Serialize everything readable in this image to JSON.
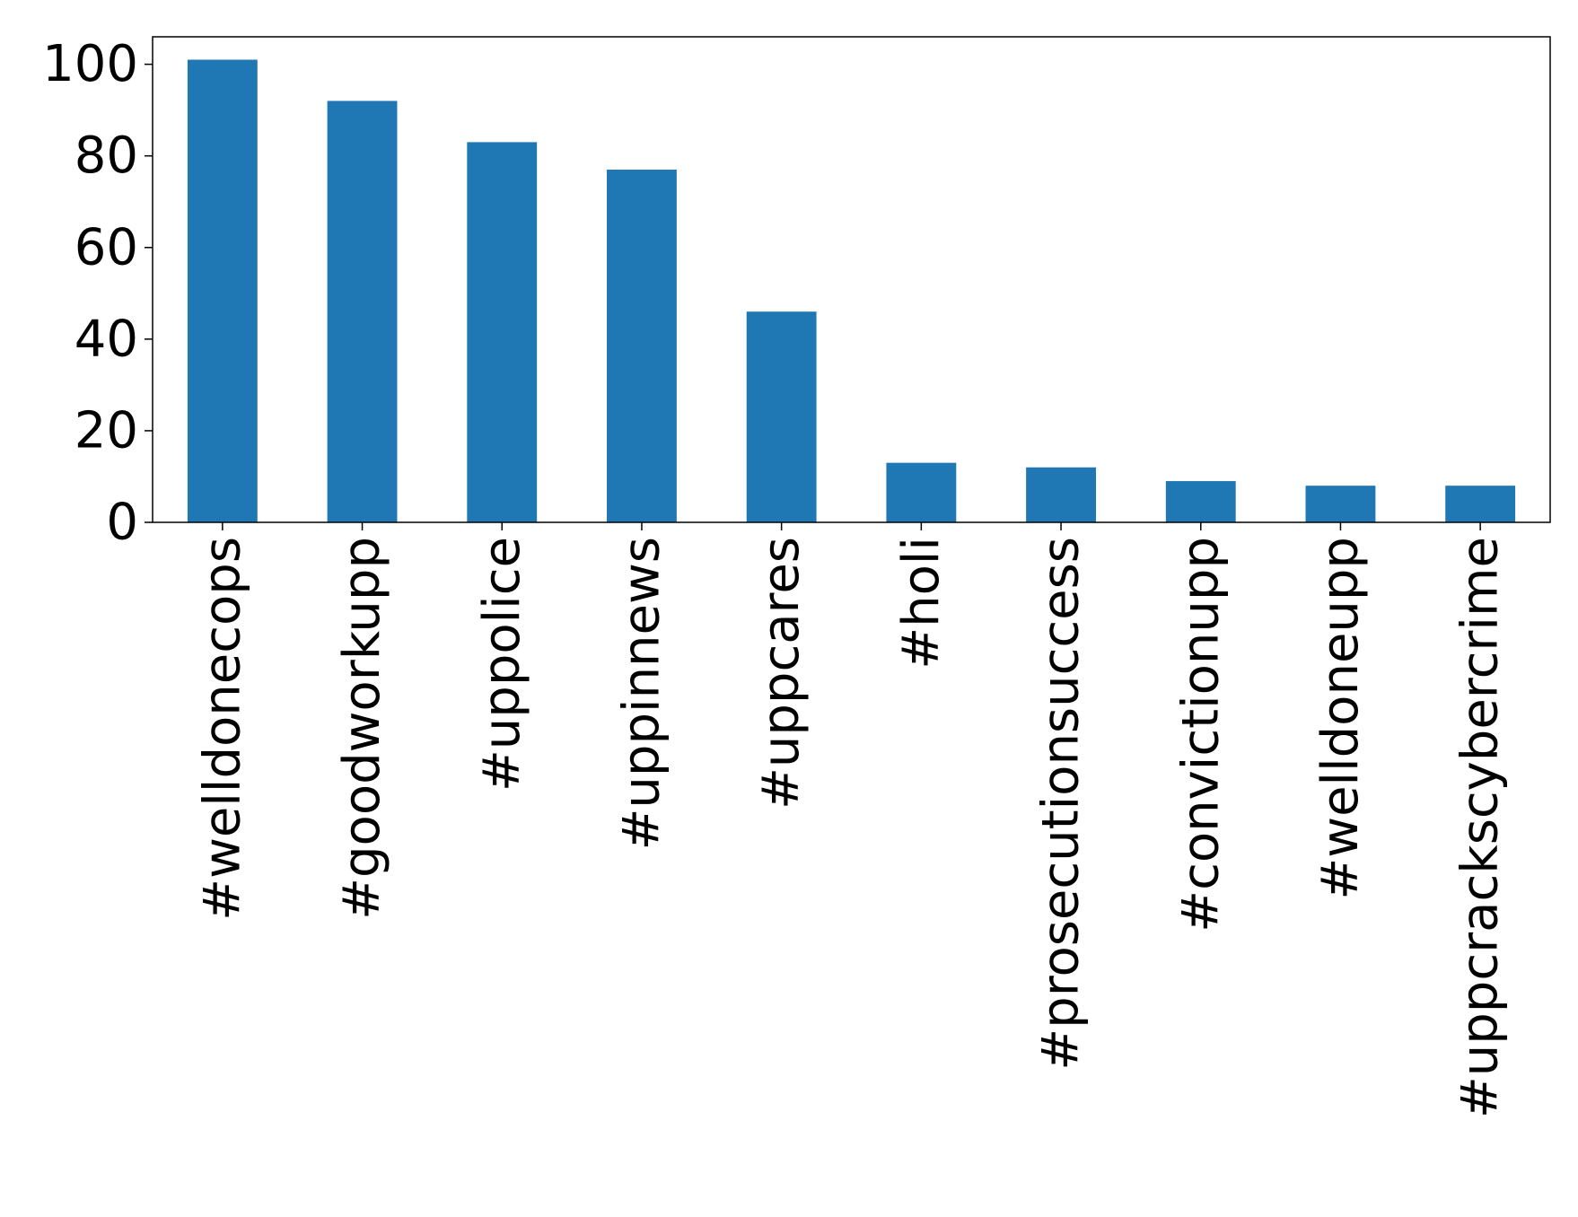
{
  "chart_data": {
    "type": "bar",
    "title": "",
    "xlabel": "",
    "ylabel": "",
    "categories": [
      "#welldonecops",
      "#goodworkupp",
      "#uppolice",
      "#uppinnews",
      "#uppcares",
      "#holi",
      "#prosecutionsuccess",
      "#convictionupp",
      "#welldoneupp",
      "#uppcrackscybercrime"
    ],
    "values": [
      101,
      92,
      83,
      77,
      46,
      13,
      12,
      9,
      8,
      8
    ],
    "ylim": [
      0,
      106
    ],
    "yticks": [
      0,
      20,
      40,
      60,
      80,
      100
    ],
    "grid": false,
    "legend": "none",
    "bar_color": "#1f77b4"
  }
}
